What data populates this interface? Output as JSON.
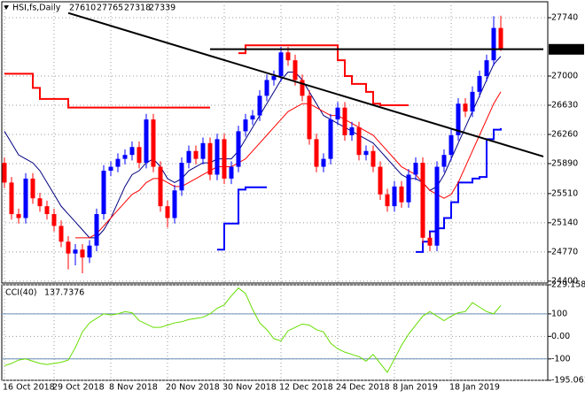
{
  "chart_data": [
    {
      "type": "candlestick",
      "title": "HSI,fs,Daily",
      "categories": [
        "16 Oct 2018",
        null,
        null,
        null,
        null,
        null,
        null,
        "29 Oct 2018",
        null,
        null,
        null,
        null,
        null,
        null,
        null,
        "8 Nov 2018",
        null,
        null,
        null,
        null,
        null,
        null,
        null,
        "20 Nov 2018",
        null,
        null,
        null,
        null,
        null,
        null,
        null,
        "30 Nov 2018",
        null,
        null,
        null,
        null,
        null,
        null,
        null,
        "12 Dec 2018",
        null,
        null,
        null,
        null,
        null,
        null,
        null,
        "24 Dec 2018",
        null,
        null,
        null,
        null,
        null,
        null,
        null,
        "8 Jan 2019",
        null,
        null,
        null,
        null,
        null,
        null,
        null,
        "18 Jan 2019",
        null,
        null,
        null,
        null,
        null,
        null,
        null
      ],
      "open": [
        25900,
        25650,
        25250,
        25200,
        25700,
        25450,
        25350,
        25250,
        25100,
        24900,
        24750,
        24800,
        24700,
        24850,
        25250,
        25800,
        25850,
        25950,
        26000,
        26100,
        25900,
        26450,
        25850,
        25350,
        25200,
        25550,
        25900,
        26050,
        25950,
        26150,
        25750,
        26200,
        25700,
        25850,
        26300,
        26450,
        26500,
        26750,
        26950,
        27000,
        27300,
        27200,
        26950,
        26750,
        26200,
        25850,
        25950,
        26450,
        26600,
        26250,
        26350,
        26000,
        26050,
        25850,
        25500,
        25350,
        25600,
        25400,
        25750,
        25900,
        24950,
        24850,
        25850,
        26000,
        26250,
        26650,
        26550,
        26800,
        27000,
        27200,
        27610
      ],
      "high": [
        25970,
        25720,
        25320,
        25770,
        25770,
        25520,
        25420,
        25320,
        25170,
        24970,
        24870,
        24870,
        24920,
        25320,
        25870,
        25920,
        26020,
        26070,
        26170,
        26170,
        26520,
        26520,
        25920,
        25420,
        25620,
        25970,
        26120,
        26120,
        26220,
        26220,
        26270,
        26270,
        25920,
        26370,
        26520,
        26570,
        26820,
        27020,
        27070,
        27370,
        27370,
        27270,
        27020,
        26820,
        26270,
        26020,
        26520,
        26670,
        26670,
        26420,
        26420,
        26120,
        26120,
        25920,
        25570,
        25670,
        25670,
        25820,
        25970,
        25970,
        25020,
        25920,
        26070,
        26320,
        26720,
        26720,
        26870,
        27070,
        27270,
        27760,
        27765
      ],
      "low": [
        25580,
        25180,
        25130,
        25130,
        25380,
        25280,
        25180,
        25030,
        24830,
        24550,
        24600,
        24500,
        24630,
        24780,
        25180,
        25730,
        25780,
        25880,
        25930,
        25830,
        25830,
        25780,
        25280,
        25080,
        25130,
        25480,
        25830,
        25880,
        25880,
        25680,
        25680,
        25630,
        25630,
        25780,
        26230,
        26380,
        26430,
        26680,
        26880,
        26930,
        27130,
        26880,
        26680,
        26130,
        25780,
        25780,
        25880,
        26380,
        26180,
        26180,
        25930,
        25930,
        25780,
        25430,
        25280,
        25280,
        25330,
        25330,
        25680,
        24880,
        24780,
        24780,
        25780,
        25930,
        26180,
        26480,
        26480,
        26730,
        26930,
        27130,
        27318
      ],
      "close": [
        25650,
        25250,
        25200,
        25700,
        25450,
        25350,
        25250,
        25100,
        24900,
        24750,
        24800,
        24700,
        24850,
        25250,
        25800,
        25850,
        25950,
        26000,
        26100,
        25900,
        26450,
        25850,
        25350,
        25200,
        25550,
        25900,
        26050,
        25950,
        26150,
        25750,
        26200,
        25700,
        25850,
        26300,
        26450,
        26500,
        26750,
        26950,
        27000,
        27300,
        27200,
        26950,
        26750,
        26200,
        25850,
        25950,
        26450,
        26600,
        26250,
        26350,
        26000,
        26050,
        25850,
        25500,
        25350,
        25600,
        25400,
        25750,
        25900,
        24950,
        24850,
        25850,
        26000,
        26250,
        26650,
        26550,
        26800,
        27000,
        27200,
        27610,
        27339
      ],
      "up_color": "#0000ff",
      "down_color": "#ff0000",
      "ylim": [
        24376,
        27942
      ],
      "yticks": [
        27740,
        27000,
        26630,
        26260,
        25890,
        25510,
        25140,
        24770,
        24400
      ],
      "grid": true,
      "series": [
        {
          "color": "#ff0000",
          "step": true,
          "thick": true,
          "values": [
            27030,
            27030,
            27030,
            27030,
            26850,
            26710,
            26710,
            26710,
            26710,
            26600,
            26600,
            26600,
            26600,
            26600,
            26600,
            26600,
            26600,
            26600,
            26600,
            26600,
            26600,
            26600,
            26600,
            26600,
            26600,
            26600,
            26600,
            26600,
            26600,
            26600,
            null,
            null,
            null,
            27290,
            27390,
            27390,
            27390,
            27390,
            27390,
            27390,
            27390,
            27390,
            27390,
            27390,
            27390,
            27390,
            27390,
            27200,
            27000,
            26900,
            26900,
            26800,
            26650,
            26630,
            26630,
            26630,
            26630,
            26630,
            null,
            null,
            null,
            null,
            null,
            null,
            null,
            null,
            null,
            null,
            null,
            null,
            null
          ]
        },
        {
          "color": "#0000ff",
          "step": true,
          "thick": true,
          "values": [
            null,
            null,
            null,
            null,
            null,
            null,
            null,
            null,
            null,
            null,
            null,
            null,
            null,
            null,
            null,
            null,
            null,
            null,
            null,
            null,
            null,
            null,
            null,
            null,
            null,
            null,
            null,
            null,
            null,
            null,
            24800,
            25130,
            25130,
            25560,
            25590,
            25590,
            25590,
            25590,
            null,
            null,
            null,
            null,
            null,
            null,
            null,
            null,
            null,
            null,
            null,
            null,
            null,
            null,
            null,
            null,
            null,
            null,
            null,
            null,
            24770,
            24900,
            25030,
            25070,
            25200,
            25400,
            25650,
            25650,
            25700,
            25720,
            26200,
            26320,
            26340
          ]
        },
        {
          "color": "#000080",
          "step": false,
          "thick": false,
          "values": [
            26300,
            26150,
            26000,
            25950,
            25900,
            25800,
            25650,
            25500,
            25350,
            25250,
            25150,
            25050,
            24950,
            24950,
            25050,
            25200,
            25400,
            25600,
            25750,
            25800,
            25900,
            25950,
            25850,
            25700,
            25650,
            25700,
            25800,
            25850,
            25900,
            25900,
            25950,
            25950,
            25950,
            26050,
            26200,
            26350,
            26500,
            26650,
            26800,
            26950,
            27050,
            27050,
            26950,
            26800,
            26650,
            26500,
            26450,
            26400,
            26350,
            26300,
            26250,
            26200,
            26150,
            26050,
            25950,
            25850,
            25750,
            25700,
            25700,
            25650,
            25550,
            25600,
            25750,
            25950,
            26150,
            26350,
            26550,
            26750,
            26950,
            27150,
            27250
          ]
        },
        {
          "color": "#ff0000",
          "step": false,
          "thick": false,
          "values": [
            null,
            null,
            null,
            null,
            null,
            null,
            null,
            null,
            null,
            null,
            24950,
            24950,
            24950,
            25000,
            25100,
            25200,
            25300,
            25400,
            25500,
            25550,
            25650,
            25700,
            25700,
            25650,
            25600,
            25600,
            25650,
            25700,
            25750,
            25800,
            25850,
            25850,
            25850,
            25900,
            25950,
            26050,
            26150,
            26250,
            26350,
            26450,
            26550,
            26600,
            26650,
            26650,
            26600,
            26550,
            26500,
            26500,
            26450,
            26400,
            26350,
            26300,
            26250,
            26150,
            26050,
            25950,
            25850,
            25800,
            25750,
            25650,
            25550,
            25500,
            25450,
            25500,
            25650,
            25850,
            26050,
            26250,
            26450,
            26650,
            26800
          ]
        }
      ],
      "trendlines": [
        {
          "color": "#000000",
          "x": [
            9,
            76
          ],
          "values": [
            27800,
            25980
          ]
        },
        {
          "color": "#000000",
          "x": [
            29,
            76
          ],
          "values": [
            27340,
            27340
          ]
        }
      ]
    },
    {
      "type": "line",
      "title": "CCI(40)",
      "series": [
        {
          "color": "#66dd00",
          "values": [
            -130,
            -120,
            -105,
            -100,
            -110,
            -120,
            -125,
            -120,
            -115,
            -105,
            -50,
            20,
            60,
            80,
            100,
            95,
            100,
            110,
            105,
            70,
            55,
            40,
            40,
            50,
            60,
            65,
            75,
            80,
            85,
            100,
            125,
            140,
            180,
            215,
            190,
            120,
            60,
            30,
            -10,
            -20,
            25,
            40,
            55,
            50,
            30,
            20,
            -30,
            -55,
            -70,
            -80,
            -90,
            -110,
            -80,
            -120,
            -160,
            -100,
            -40,
            10,
            50,
            90,
            110,
            90,
            70,
            90,
            105,
            110,
            150,
            130,
            110,
            100,
            137.7376
          ]
        }
      ],
      "ylim": [
        -195.061,
        229.1588
      ],
      "yticks": [
        229.1588,
        100,
        {
          "value": 0,
          "label": "0.00"
        },
        -100,
        -195.061
      ],
      "levels": [
        100,
        -100
      ],
      "grid": true
    }
  ]
}
